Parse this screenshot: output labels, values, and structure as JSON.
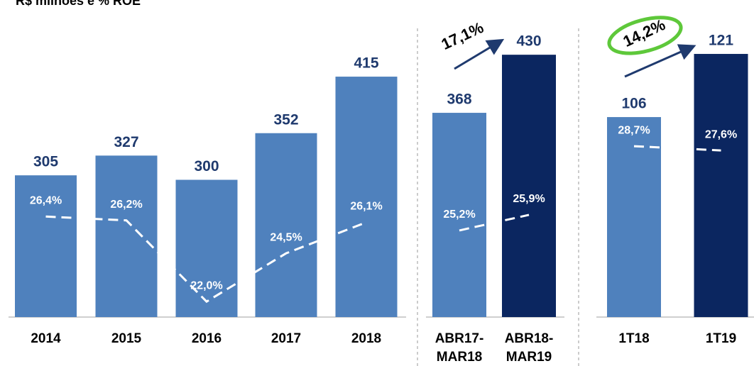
{
  "title": "R$ milhões e % ROE",
  "chart_data": [
    {
      "type": "bar",
      "categories": [
        "2014",
        "2015",
        "2016",
        "2017",
        "2018"
      ],
      "values": [
        305,
        327,
        300,
        352,
        415
      ],
      "colors": [
        "#4f81bd",
        "#4f81bd",
        "#4f81bd",
        "#4f81bd",
        "#4f81bd"
      ],
      "ylim": [
        147,
        453
      ],
      "roe": {
        "values": [
          26.4,
          26.2,
          22.0,
          24.5,
          26.1
        ],
        "value_labels": [
          "26,4%",
          "26,2%",
          "22,0%",
          "24,5%",
          "26,1%"
        ],
        "axis": "y2",
        "color": "#ffffff"
      },
      "y2lim": [
        21.2,
        35.4
      ]
    },
    {
      "type": "bar",
      "categories": [
        "ABR17-MAR18",
        "ABR18-MAR19"
      ],
      "values": [
        368,
        430
      ],
      "colors": [
        "#4f81bd",
        "#0b2660"
      ],
      "ylim": [
        150,
        443
      ],
      "roe": {
        "values": [
          25.2,
          25.9
        ],
        "value_labels": [
          "25,2%",
          "25,9%"
        ],
        "axis": "y2",
        "color": "#ffffff"
      },
      "y2lim": [
        21.31,
        33.64
      ],
      "annotation": "17,1%"
    },
    {
      "type": "bar",
      "categories": [
        "1T18",
        "1T19"
      ],
      "values": [
        106,
        121
      ],
      "colors": [
        "#4f81bd",
        "#0b2660"
      ],
      "ylim": [
        58.5,
        123.7
      ],
      "roe": {
        "values": [
          28.7,
          27.6
        ],
        "value_labels": [
          "28,7%",
          "27,6%"
        ],
        "axis": "y2",
        "color": "#ffffff"
      },
      "y2lim": [
        -15.5,
        55.5
      ],
      "annotation": "14,2%",
      "annotation_highlight": "#5ec83a"
    }
  ]
}
